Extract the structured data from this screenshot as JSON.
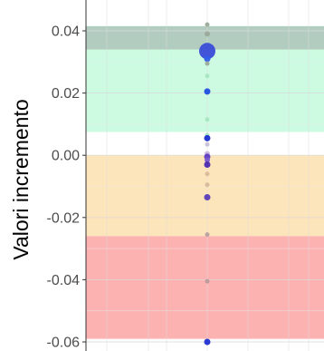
{
  "chart_data": {
    "type": "scatter",
    "title": "",
    "xlabel": "",
    "ylabel": "Valori incremento",
    "ylim": [
      -0.061,
      0.046
    ],
    "y_ticks": [
      0.04,
      0.02,
      0.0,
      -0.02,
      -0.04,
      -0.06
    ],
    "y_tick_labels": [
      "0.04",
      "0.02",
      "0.00",
      "-0.02",
      "-0.04",
      "-0.06"
    ],
    "grid": true,
    "background_bands": [
      {
        "name": "green",
        "y0": 0.0075,
        "y1": 0.0415,
        "color": "#ccfbe1"
      },
      {
        "name": "dark-overlay",
        "y0": 0.034,
        "y1": 0.0415,
        "color": "#b2cdbf"
      },
      {
        "name": "orange",
        "y0": -0.026,
        "y1": 0.0,
        "color": "#fde5bb"
      },
      {
        "name": "red",
        "y0": -0.059,
        "y1": -0.026,
        "color": "#fdb2b2"
      }
    ],
    "points": [
      {
        "y": 0.042,
        "size": 2.5,
        "color": "#9aaa9a"
      },
      {
        "y": 0.039,
        "size": 3,
        "color": "#9aaa9a"
      },
      {
        "y": 0.0335,
        "size": 9,
        "color": "#3a4bd6"
      },
      {
        "y": 0.031,
        "size": 3.5,
        "color": "#2f5fe8"
      },
      {
        "y": 0.0295,
        "size": 2.5,
        "color": "#9aaa9a"
      },
      {
        "y": 0.0255,
        "size": 2.5,
        "color": "#a8e6c0"
      },
      {
        "y": 0.0205,
        "size": 3.5,
        "color": "#1f4ee0"
      },
      {
        "y": 0.0115,
        "size": 2.5,
        "color": "#a8e6c0"
      },
      {
        "y": 0.0065,
        "size": 2.5,
        "color": "#a8e6c0"
      },
      {
        "y": 0.0055,
        "size": 3.5,
        "color": "#1a2fd0"
      },
      {
        "y": 0.0035,
        "size": 2.5,
        "color": "#c7c0d8"
      },
      {
        "y": 0.0005,
        "size": 3,
        "color": "#c9b2e0"
      },
      {
        "y": -0.0005,
        "size": 3.5,
        "color": "#5a3bc0"
      },
      {
        "y": -0.0015,
        "size": 3,
        "color": "#7a5ad0"
      },
      {
        "y": -0.003,
        "size": 3.5,
        "color": "#4a2ab0"
      },
      {
        "y": -0.006,
        "size": 2.5,
        "color": "#d8b89a"
      },
      {
        "y": -0.0095,
        "size": 2.5,
        "color": "#d8b89a"
      },
      {
        "y": -0.0135,
        "size": 3.5,
        "color": "#5a3bb8"
      },
      {
        "y": -0.0255,
        "size": 2.5,
        "color": "#b8a0a0"
      },
      {
        "y": -0.0405,
        "size": 2.5,
        "color": "#b89a9a"
      },
      {
        "y": -0.06,
        "size": 3.5,
        "color": "#1f2fd0"
      }
    ]
  }
}
